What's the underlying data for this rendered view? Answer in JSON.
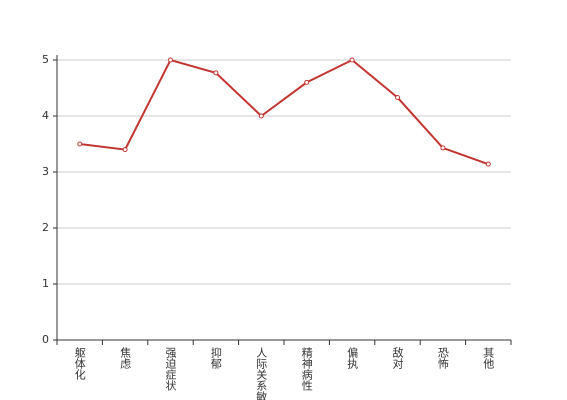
{
  "chart_data": {
    "type": "line",
    "categories": [
      "躯体化",
      "焦虑",
      "强迫症状",
      "抑郁",
      "人际关系敏感",
      "精神病性",
      "偏执",
      "敌对",
      "恐怖",
      "其他"
    ],
    "series": [
      {
        "color": "#c23531",
        "values": [
          3.5,
          3.4,
          5,
          4.77,
          4,
          4.6,
          5,
          4.33,
          3.43,
          3.14
        ]
      }
    ],
    "ylim": [
      0,
      5
    ],
    "yticks": [
      0,
      1,
      2,
      3,
      4,
      5
    ],
    "grid": true
  }
}
